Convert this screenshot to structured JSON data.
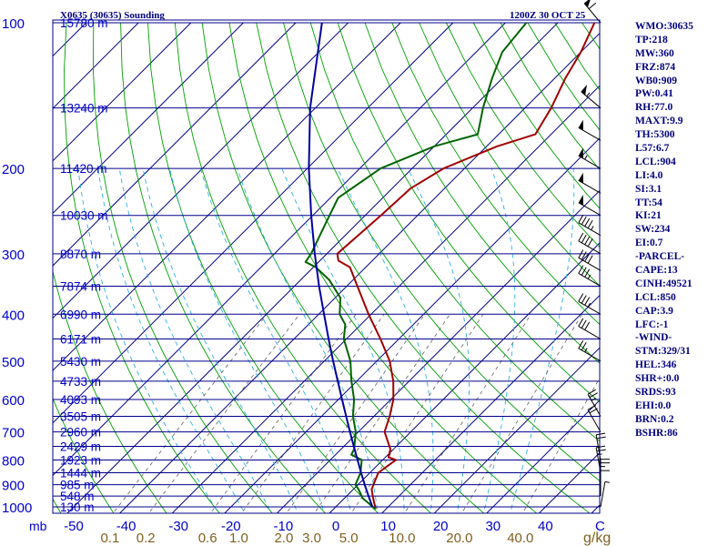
{
  "chart_data": {
    "type": "skew-t sounding",
    "title_left": "X0635 (30635) Sounding",
    "title_right": "1200Z 30 OCT 25",
    "pressure_unit_label": "mb",
    "mixing_ratio_unit_label": "g/kg",
    "pressure_levels": [
      100,
      200,
      300,
      400,
      500,
      600,
      700,
      800,
      900,
      1000
    ],
    "height_labels": [
      {
        "p": 100,
        "label": "15780 m"
      },
      {
        "p": 150,
        "label": "13240 m"
      },
      {
        "p": 200,
        "label": "11420 m"
      },
      {
        "p": 250,
        "label": "10030 m"
      },
      {
        "p": 300,
        "label": "8870 m"
      },
      {
        "p": 350,
        "label": "7874 m"
      },
      {
        "p": 400,
        "label": "6990 m"
      },
      {
        "p": 450,
        "label": "6171 m"
      },
      {
        "p": 500,
        "label": "5430 m"
      },
      {
        "p": 550,
        "label": "4733 m"
      },
      {
        "p": 600,
        "label": "4093 m"
      },
      {
        "p": 650,
        "label": "3505 m"
      },
      {
        "p": 700,
        "label": "2960 m"
      },
      {
        "p": 750,
        "label": "2429 m"
      },
      {
        "p": 800,
        "label": "1923 m"
      },
      {
        "p": 850,
        "label": "1444 m"
      },
      {
        "p": 900,
        "label": "985 m"
      },
      {
        "p": 950,
        "label": "548 m"
      },
      {
        "p": 1000,
        "label": "130 m"
      }
    ],
    "temperature_ticks": [
      -50,
      -40,
      -30,
      -20,
      -10,
      0,
      10,
      20,
      30,
      40
    ],
    "end_tick_label": "C",
    "mixing_ratio_ticks": [
      {
        "value": 0.1,
        "label": "0.1"
      },
      {
        "value": 0.2,
        "label": "0.2"
      },
      {
        "value": 0.6,
        "label": "0.6"
      },
      {
        "value": 1.0,
        "label": "1.0"
      },
      {
        "value": 2.0,
        "label": "2.0"
      },
      {
        "value": 3.0,
        "label": "3.0"
      },
      {
        "value": 5.0,
        "label": "5.0"
      },
      {
        "value": 10.0,
        "label": "10.0"
      },
      {
        "value": 20.0,
        "label": "20.0"
      },
      {
        "value": 40.0,
        "label": "40.0"
      }
    ],
    "series": [
      {
        "name": "temperature",
        "color": "#a00000",
        "profile": [
          [
            1010,
            8.0
          ],
          [
            960,
            5.5
          ],
          [
            920,
            3.5
          ],
          [
            880,
            2.4
          ],
          [
            850,
            1.6
          ],
          [
            800,
            2.5
          ],
          [
            790,
            0.6
          ],
          [
            760,
            -0.6
          ],
          [
            700,
            -5.0
          ],
          [
            650,
            -7.0
          ],
          [
            600,
            -9.5
          ],
          [
            550,
            -13.0
          ],
          [
            500,
            -17.5
          ],
          [
            450,
            -23.5
          ],
          [
            400,
            -30.5
          ],
          [
            350,
            -38.0
          ],
          [
            320,
            -43.0
          ],
          [
            310,
            -46.5
          ],
          [
            300,
            -48.0
          ],
          [
            250,
            -47.0
          ],
          [
            220,
            -46.5
          ],
          [
            200,
            -44.0
          ],
          [
            180,
            -38.0
          ],
          [
            170,
            -33.0
          ],
          [
            150,
            -35.0
          ],
          [
            130,
            -38.0
          ],
          [
            115,
            -40.0
          ],
          [
            100,
            -43.0
          ]
        ]
      },
      {
        "name": "dewpoint",
        "color": "#006400",
        "profile": [
          [
            1010,
            8.0
          ],
          [
            960,
            3.5
          ],
          [
            920,
            1.0
          ],
          [
            900,
            -0.5
          ],
          [
            880,
            -1.0
          ],
          [
            850,
            -1.8
          ],
          [
            800,
            -4.0
          ],
          [
            780,
            -7.0
          ],
          [
            760,
            -7.5
          ],
          [
            700,
            -10.5
          ],
          [
            650,
            -14.0
          ],
          [
            600,
            -17.0
          ],
          [
            550,
            -21.0
          ],
          [
            500,
            -25.0
          ],
          [
            450,
            -30.5
          ],
          [
            420,
            -33.0
          ],
          [
            400,
            -36.0
          ],
          [
            370,
            -39.0
          ],
          [
            340,
            -44.5
          ],
          [
            320,
            -49.5
          ],
          [
            312,
            -52.5
          ],
          [
            300,
            -53.0
          ],
          [
            260,
            -56.0
          ],
          [
            230,
            -58.5
          ],
          [
            200,
            -56.0
          ],
          [
            180,
            -50.0
          ],
          [
            170,
            -44.0
          ],
          [
            150,
            -48.0
          ],
          [
            130,
            -52.0
          ],
          [
            115,
            -55.0
          ],
          [
            100,
            -56.0
          ]
        ]
      },
      {
        "name": "parcel",
        "color": "#0000a0",
        "profile": [
          [
            1000,
            7.0
          ],
          [
            950,
            4.2
          ],
          [
            900,
            1.3
          ],
          [
            850,
            -1.7
          ],
          [
            800,
            -4.8
          ],
          [
            750,
            -8.1
          ],
          [
            700,
            -11.6
          ],
          [
            650,
            -15.3
          ],
          [
            600,
            -19.3
          ],
          [
            550,
            -23.6
          ],
          [
            500,
            -28.3
          ],
          [
            450,
            -33.4
          ],
          [
            400,
            -39.0
          ],
          [
            350,
            -45.3
          ],
          [
            300,
            -52.3
          ],
          [
            250,
            -60.3
          ],
          [
            200,
            -69.7
          ],
          [
            150,
            -81.0
          ],
          [
            100,
            -95.0
          ]
        ]
      }
    ]
  },
  "stats": [
    "WMO:30635",
    "TP:218",
    "MW:360",
    "FRZ:874",
    "WB0:909",
    "PW:0.41",
    "RH:77.0",
    "MAXT:9.9",
    "TH:5300",
    "L57:6.7",
    "LCL:904",
    "LI:4.0",
    "SI:3.1",
    "TT:54",
    "KI:21",
    "SW:234",
    "EI:0.7",
    "-PARCEL-",
    "CAPE:13",
    "CINH:49521",
    "LCL:850",
    "CAP:3.9",
    "LFC:-1",
    "-WIND-",
    "STM:329/31",
    "HEL:346",
    "SHR+:0.0",
    "SRDS:93",
    "EHI:0.0",
    "BRN:0.2",
    "BSHR:86"
  ],
  "wind_barbs": [
    {
      "p": 100,
      "dir": 320,
      "speed": 60
    },
    {
      "p": 150,
      "dir": 310,
      "speed": 55
    },
    {
      "p": 175,
      "dir": 300,
      "speed": 50
    },
    {
      "p": 200,
      "dir": 300,
      "speed": 55
    },
    {
      "p": 225,
      "dir": 300,
      "speed": 50
    },
    {
      "p": 250,
      "dir": 300,
      "speed": 50
    },
    {
      "p": 275,
      "dir": 300,
      "speed": 45
    },
    {
      "p": 300,
      "dir": 300,
      "speed": 40
    },
    {
      "p": 325,
      "dir": 300,
      "speed": 40
    },
    {
      "p": 350,
      "dir": 300,
      "speed": 35
    },
    {
      "p": 400,
      "dir": 300,
      "speed": 35
    },
    {
      "p": 450,
      "dir": 300,
      "speed": 30
    },
    {
      "p": 500,
      "dir": 300,
      "speed": 25
    },
    {
      "p": 650,
      "dir": 330,
      "speed": 25
    },
    {
      "p": 700,
      "dir": 330,
      "speed": 20
    },
    {
      "p": 800,
      "dir": 350,
      "speed": 20
    },
    {
      "p": 850,
      "dir": 350,
      "speed": 25
    },
    {
      "p": 900,
      "dir": 0,
      "speed": 25
    },
    {
      "p": 950,
      "dir": 0,
      "speed": 10
    },
    {
      "p": 1000,
      "dir": 10,
      "speed": 5
    }
  ],
  "colors": {
    "isobar": "#00008b",
    "isotherm": "#000080",
    "dry_adiabat": "#00a000",
    "moist_adiabat": "#30b0e0",
    "mixing_ratio": "#606060",
    "mr_tick_label": "#806020",
    "background": "#ffffff"
  }
}
